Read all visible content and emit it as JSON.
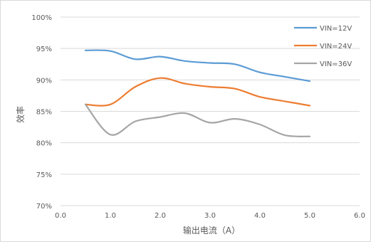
{
  "chart_data": {
    "type": "line",
    "title": "",
    "xlabel": "输出电流（A）",
    "ylabel": "效率",
    "xlim": [
      0.0,
      6.0
    ],
    "ylim": [
      70,
      100
    ],
    "x_ticks": [
      "0.0",
      "1.0",
      "2.0",
      "3.0",
      "4.0",
      "5.0",
      "6.0"
    ],
    "y_ticks": [
      "70%",
      "75%",
      "80%",
      "85%",
      "90%",
      "95%",
      "100%"
    ],
    "grid": "horizontal",
    "legend": "top-right",
    "series": [
      {
        "name": "VIN=12V",
        "color": "#5b9bd5",
        "x": [
          0.5,
          1.0,
          1.5,
          2.0,
          2.5,
          3.0,
          3.5,
          4.0,
          4.5,
          5.0
        ],
        "y": [
          94.7,
          94.6,
          93.3,
          93.7,
          93.0,
          92.7,
          92.5,
          91.2,
          90.5,
          89.8
        ]
      },
      {
        "name": "VIN=24V",
        "color": "#ed7d31",
        "x": [
          0.5,
          1.0,
          1.5,
          2.0,
          2.5,
          3.0,
          3.5,
          4.0,
          4.5,
          5.0
        ],
        "y": [
          86.1,
          86.1,
          88.9,
          90.3,
          89.4,
          88.9,
          88.6,
          87.3,
          86.6,
          85.9
        ]
      },
      {
        "name": "VIN=36V",
        "color": "#a5a5a5",
        "x": [
          0.5,
          1.0,
          1.5,
          2.0,
          2.5,
          3.0,
          3.5,
          4.0,
          4.5,
          5.0
        ],
        "y": [
          86.1,
          81.3,
          83.4,
          84.1,
          84.7,
          83.2,
          83.8,
          82.9,
          81.2,
          81.0
        ]
      }
    ]
  }
}
